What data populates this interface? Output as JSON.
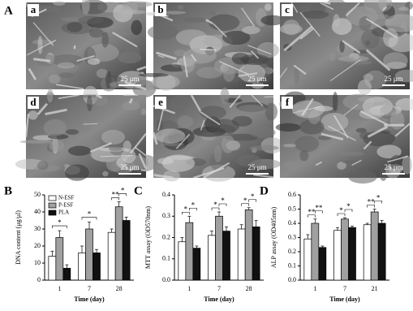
{
  "figure": {
    "label": "A",
    "panels": [
      {
        "label": "a",
        "scale_bar": "25 μm"
      },
      {
        "label": "b",
        "scale_bar": "25 μm"
      },
      {
        "label": "c",
        "scale_bar": "25 μm"
      },
      {
        "label": "d",
        "scale_bar": "25 μm"
      },
      {
        "label": "e",
        "scale_bar": "25 μm"
      },
      {
        "label": "f",
        "scale_bar": "25 μm"
      }
    ]
  },
  "chart_data": [
    {
      "type": "bar",
      "panel": "B",
      "ylabel": "DNA content (μg/μl)",
      "xlabel": "Time (day)",
      "categories": [
        "1",
        "7",
        "28"
      ],
      "series": [
        {
          "name": "N-ESF",
          "color": "#ffffff",
          "values": [
            14,
            16,
            28
          ],
          "errors": [
            3,
            4,
            2
          ]
        },
        {
          "name": "P-ESF",
          "color": "#a0a0a0",
          "values": [
            25,
            30,
            43
          ],
          "errors": [
            4,
            4,
            3
          ]
        },
        {
          "name": "PLA",
          "color": "#111111",
          "values": [
            7,
            16,
            35
          ],
          "errors": [
            2,
            2,
            2
          ]
        }
      ],
      "ylim": [
        0,
        50
      ],
      "yticks": [
        0,
        10,
        20,
        30,
        40,
        50
      ],
      "significance": [
        [
          "*"
        ],
        [
          "*"
        ],
        [
          "**",
          "*"
        ]
      ],
      "legend": "upper left"
    },
    {
      "type": "bar",
      "panel": "C",
      "ylabel": "MTT assay (OD570nm)",
      "xlabel": "Time (day)",
      "categories": [
        "1",
        "7",
        "28"
      ],
      "series": [
        {
          "color": "#ffffff",
          "values": [
            0.18,
            0.21,
            0.24
          ],
          "errors": [
            0.02,
            0.02,
            0.02
          ]
        },
        {
          "color": "#a0a0a0",
          "values": [
            0.27,
            0.3,
            0.33
          ],
          "errors": [
            0.03,
            0.02,
            0.01
          ]
        },
        {
          "color": "#111111",
          "values": [
            0.15,
            0.23,
            0.25
          ],
          "errors": [
            0.01,
            0.02,
            0.03
          ]
        }
      ],
      "ylim": [
        0,
        0.4
      ],
      "yticks": [
        {
          "value": 0,
          "label": "0.0"
        },
        0.1,
        0.2,
        0.3,
        0.4
      ],
      "significance": [
        [
          "*",
          "*"
        ],
        [
          "*",
          "*"
        ],
        [
          "*",
          "*"
        ]
      ]
    },
    {
      "type": "bar",
      "panel": "D",
      "ylabel": "ALP assay (OD405nm)",
      "xlabel": "Time (day)",
      "categories": [
        "1",
        "7",
        "21"
      ],
      "series": [
        {
          "color": "#ffffff",
          "values": [
            0.29,
            0.35,
            0.39
          ],
          "errors": [
            0.03,
            0.02,
            0.01
          ]
        },
        {
          "color": "#a0a0a0",
          "values": [
            0.4,
            0.43,
            0.48
          ],
          "errors": [
            0.03,
            0.01,
            0.02
          ]
        },
        {
          "color": "#111111",
          "values": [
            0.23,
            0.37,
            0.4
          ],
          "errors": [
            0.01,
            0.01,
            0.02
          ]
        }
      ],
      "ylim": [
        0,
        0.6
      ],
      "yticks": [
        {
          "value": 0,
          "label": "0.0"
        },
        0.1,
        0.2,
        0.3,
        0.4,
        0.5,
        0.6
      ],
      "significance": [
        [
          "**",
          "**"
        ],
        [
          "*",
          "*"
        ],
        [
          "**",
          "*"
        ]
      ]
    }
  ]
}
